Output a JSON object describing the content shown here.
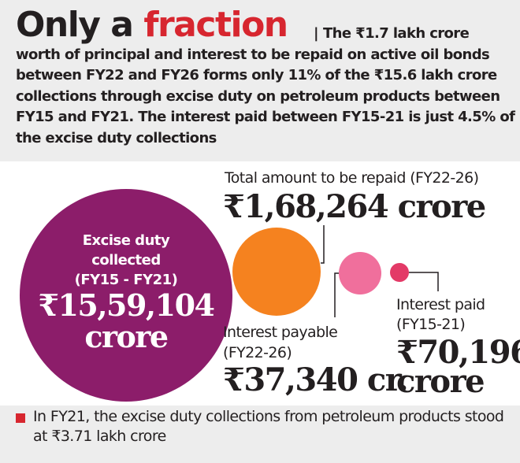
{
  "header": {
    "title_part1": "Only a",
    "title_part2": "fraction",
    "separator": "|",
    "intro": "The ₹1.7 lakh crore worth of principal and interest to be repaid on active oil bonds between FY22 and FY26 forms only 11% of the ₹15.6 lakh crore collections through excise duty on petroleum products between FY15 and FY21. The interest paid between FY15-21 is just 4.5% of the excise duty collections"
  },
  "footer": {
    "note": "In FY21, the excise duty collections from petroleum products stood at ₹3.71 lakh crore"
  },
  "chart_data": {
    "type": "bubble",
    "title": "Only a fraction",
    "unit": "₹ crore",
    "items": [
      {
        "label_lines": [
          "Excise duty",
          "collected",
          "(FY15 - FY21)"
        ],
        "value_text": "₹15,59,104",
        "unit_text": "crore",
        "value": 1559104,
        "color": "#8c1d6a"
      },
      {
        "label_lines": [
          "Total amount to be repaid (FY22-26)"
        ],
        "value_text": "₹1,68,264 crore",
        "value": 168264,
        "color": "#f5821f"
      },
      {
        "label_lines": [
          "Interest payable",
          "(FY22-26)"
        ],
        "value_text": "₹37,340 cr.",
        "value": 37340,
        "color": "#f06f9c"
      },
      {
        "label_lines": [
          "Interest paid",
          "(FY15-21)"
        ],
        "value_text": "₹70,196",
        "unit_text": "crore",
        "value": 70196,
        "color": "#e33a67"
      }
    ]
  }
}
